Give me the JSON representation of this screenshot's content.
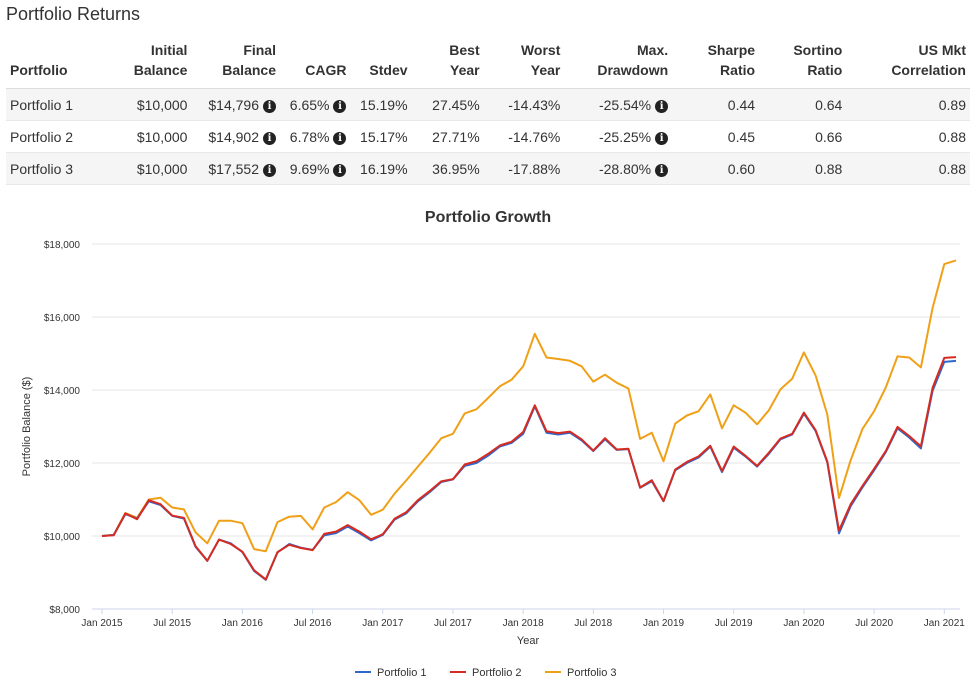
{
  "page_title": "Portfolio Returns",
  "table": {
    "headers": [
      {
        "line1": "",
        "line2": "Portfolio",
        "align": "left"
      },
      {
        "line1": "Initial",
        "line2": "Balance",
        "align": "right"
      },
      {
        "line1": "Final",
        "line2": "Balance",
        "align": "right"
      },
      {
        "line1": "",
        "line2": "CAGR",
        "align": "right"
      },
      {
        "line1": "",
        "line2": "Stdev",
        "align": "right"
      },
      {
        "line1": "Best",
        "line2": "Year",
        "align": "right"
      },
      {
        "line1": "Worst",
        "line2": "Year",
        "align": "right"
      },
      {
        "line1": "Max.",
        "line2": "Drawdown",
        "align": "right"
      },
      {
        "line1": "Sharpe",
        "line2": "Ratio",
        "align": "right"
      },
      {
        "line1": "Sortino",
        "line2": "Ratio",
        "align": "right"
      },
      {
        "line1": "US Mkt",
        "line2": "Correlation",
        "align": "right"
      }
    ],
    "rows": [
      {
        "portfolio": "Portfolio 1",
        "initial": "$10,000",
        "final": "$14,796",
        "cagr": "6.65%",
        "stdev": "15.19%",
        "best": "27.45%",
        "worst": "-14.43%",
        "drawdown": "-25.54%",
        "sharpe": "0.44",
        "sortino": "0.64",
        "corr": "0.89"
      },
      {
        "portfolio": "Portfolio 2",
        "initial": "$10,000",
        "final": "$14,902",
        "cagr": "6.78%",
        "stdev": "15.17%",
        "best": "27.71%",
        "worst": "-14.76%",
        "drawdown": "-25.25%",
        "sharpe": "0.45",
        "sortino": "0.66",
        "corr": "0.88"
      },
      {
        "portfolio": "Portfolio 3",
        "initial": "$10,000",
        "final": "$17,552",
        "cagr": "9.69%",
        "stdev": "16.19%",
        "best": "36.95%",
        "worst": "-17.88%",
        "drawdown": "-28.80%",
        "sharpe": "0.60",
        "sortino": "0.88",
        "corr": "0.88"
      }
    ],
    "info_icon": "info-circle-icon",
    "info_glyph": "i"
  },
  "chart_data": {
    "type": "line",
    "title": "Portfolio Growth",
    "xlabel": "Year",
    "ylabel": "Portfolio Balance ($)",
    "ylim": [
      8000,
      18000
    ],
    "yticks": [
      8000,
      10000,
      12000,
      14000,
      16000,
      18000
    ],
    "ytick_labels": [
      "$8,000",
      "$10,000",
      "$12,000",
      "$14,000",
      "$16,000",
      "$18,000"
    ],
    "xticks": [
      0,
      6,
      12,
      18,
      24,
      30,
      36,
      42,
      48,
      54,
      60,
      66,
      72
    ],
    "xtick_labels": [
      "Jan 2015",
      "Jul 2015",
      "Jan 2016",
      "Jul 2016",
      "Jan 2017",
      "Jul 2017",
      "Jan 2018",
      "Jul 2018",
      "Jan 2019",
      "Jul 2019",
      "Jan 2020",
      "Jul 2020",
      "Jan 2021"
    ],
    "x_month_start": "Jan 2015",
    "x_month_end": "Feb 2021",
    "grid": true,
    "legend_position": "bottom-center",
    "series": [
      {
        "name": "Portfolio 1",
        "color": "#3366cc",
        "values": [
          10000,
          10030,
          10600,
          10480,
          10950,
          10850,
          10550,
          10480,
          9700,
          9320,
          9900,
          9800,
          9560,
          9040,
          8800,
          9550,
          9780,
          9680,
          9620,
          10020,
          10080,
          10260,
          10080,
          9880,
          10030,
          10450,
          10620,
          10950,
          11200,
          11480,
          11550,
          11920,
          12000,
          12200,
          12450,
          12550,
          12800,
          13550,
          12830,
          12780,
          12830,
          12620,
          12330,
          12650,
          12360,
          12380,
          11320,
          11500,
          10950,
          11800,
          12000,
          12150,
          12450,
          11750,
          12420,
          12180,
          11900,
          12250,
          12650,
          12780,
          13350,
          12880,
          12020,
          10070,
          10820,
          11330,
          11800,
          12300,
          12950,
          12700,
          12400,
          13980,
          14770,
          14796
        ]
      },
      {
        "name": "Portfolio 2",
        "color": "#d62b20",
        "values": [
          10000,
          10020,
          10620,
          10460,
          10980,
          10870,
          10560,
          10500,
          9720,
          9320,
          9900,
          9780,
          9570,
          9060,
          8810,
          9560,
          9760,
          9670,
          9610,
          10060,
          10120,
          10300,
          10120,
          9910,
          10050,
          10470,
          10650,
          10980,
          11230,
          11500,
          11560,
          11960,
          12050,
          12250,
          12480,
          12580,
          12850,
          13580,
          12870,
          12820,
          12860,
          12650,
          12340,
          12680,
          12370,
          12390,
          11330,
          11530,
          10960,
          11820,
          12030,
          12180,
          12470,
          11780,
          12450,
          12200,
          11920,
          12280,
          12670,
          12800,
          13380,
          12900,
          12040,
          10150,
          10870,
          11370,
          11840,
          12330,
          12990,
          12740,
          12460,
          14060,
          14880,
          14902
        ]
      },
      {
        "name": "Portfolio 3",
        "color": "#f0a017",
        "values": [
          10000,
          10030,
          10630,
          10500,
          11000,
          11050,
          10780,
          10730,
          10100,
          9800,
          10420,
          10420,
          10350,
          9640,
          9580,
          10380,
          10530,
          10550,
          10180,
          10780,
          10930,
          11200,
          10980,
          10580,
          10720,
          11160,
          11520,
          11900,
          12280,
          12680,
          12800,
          13360,
          13470,
          13780,
          14100,
          14280,
          14650,
          15540,
          14890,
          14850,
          14800,
          14650,
          14230,
          14420,
          14200,
          14040,
          12660,
          12830,
          12050,
          13080,
          13300,
          13420,
          13880,
          12950,
          13580,
          13380,
          13060,
          13440,
          14020,
          14310,
          15030,
          14400,
          13330,
          11040,
          12080,
          12930,
          13420,
          14070,
          14920,
          14890,
          14620,
          16250,
          17450,
          17552
        ]
      }
    ]
  }
}
